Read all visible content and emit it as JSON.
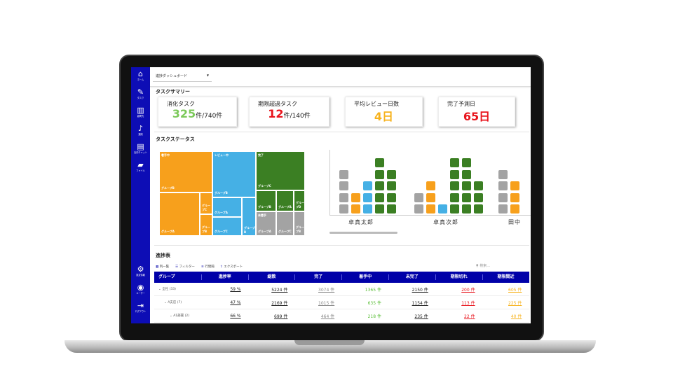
{
  "sidebar": {
    "items": [
      {
        "icon": "home-icon",
        "glyph": "⌂",
        "label": "ホーム"
      },
      {
        "icon": "task-icon",
        "glyph": "✎",
        "label": "タスク"
      },
      {
        "icon": "client-icon",
        "glyph": "▥",
        "label": "顧問先"
      },
      {
        "icon": "bell-icon",
        "glyph": "♪",
        "label": "通知"
      },
      {
        "icon": "chat-icon",
        "glyph": "▤",
        "label": "社内チャット"
      },
      {
        "icon": "folder-icon",
        "glyph": "▰",
        "label": "ファイル"
      }
    ],
    "bottom": [
      {
        "icon": "gear-icon",
        "glyph": "⚙",
        "label": "設定情報"
      },
      {
        "icon": "user-icon",
        "glyph": "◉",
        "label": "ユーザー"
      },
      {
        "icon": "logout-icon",
        "glyph": "⇥",
        "label": "ログアウト"
      }
    ],
    "color": "#0d0db5"
  },
  "header": {
    "select_value": "進捗ダッシュボード"
  },
  "summary": {
    "title": "タスクサマリー",
    "cards": [
      {
        "label": "消化タスク",
        "value": "325",
        "unit": "件/740件",
        "color": "#7cc95a"
      },
      {
        "label": "期限超過タスク",
        "value": "12",
        "unit": "件/140件",
        "color": "#e8141c"
      },
      {
        "label": "平均レビュー日数",
        "value": "4日",
        "unit": "",
        "color": "#f7b21c"
      },
      {
        "label": "完了予測日",
        "value": "65日",
        "unit": "",
        "color": "#e8141c"
      }
    ]
  },
  "status": {
    "title": "タスクステータス",
    "treemap": [
      {
        "status": "着手中",
        "color": "#f7a01c",
        "groups": [
          "グループB",
          "グループA",
          "グループC",
          "グループB"
        ]
      },
      {
        "status": "レビュー中",
        "color": "#45b0e5",
        "groups": [
          "グループB",
          "グループA",
          "グループC",
          "グループB"
        ]
      },
      {
        "status": "完了",
        "color": "#3b7f23",
        "groups": [
          "グループC",
          "グループB",
          "グループA",
          "グループD"
        ]
      },
      {
        "status": "未着手",
        "color": "#a3a3a3",
        "groups": [
          "グループA",
          "グループC",
          "グループB"
        ]
      }
    ],
    "waffle": [
      {
        "name": "卓真太郎",
        "columns": [
          {
            "status": "未着手",
            "count": 4
          },
          {
            "status": "着手中",
            "count": 2
          },
          {
            "status": "レビュー中",
            "count": 3
          },
          {
            "status": "完了",
            "count": 5
          },
          {
            "status": "完了",
            "count": 4
          }
        ]
      },
      {
        "name": "卓真次郎",
        "columns": [
          {
            "status": "未着手",
            "count": 2
          },
          {
            "status": "着手中",
            "count": 3
          },
          {
            "status": "レビュー中",
            "count": 1
          },
          {
            "status": "完了",
            "count": 5
          },
          {
            "status": "完了",
            "count": 5
          },
          {
            "status": "完了",
            "count": 3
          }
        ]
      },
      {
        "name": "田中",
        "columns": [
          {
            "status": "未着手",
            "count": 4
          },
          {
            "status": "着手中",
            "count": 3
          }
        ]
      }
    ]
  },
  "progress": {
    "title": "進捗表",
    "toolbar": [
      "列一覧",
      "フィルター",
      "行間隔",
      "エクスポート"
    ],
    "search_placeholder": "検索…",
    "columns": [
      "グループ",
      "進捗率",
      "総数",
      "完了",
      "着手中",
      "未完了",
      "期限切れ",
      "期限間近"
    ],
    "rows": [
      {
        "group": "⌄ 全社 (33)",
        "cells": [
          "59 %",
          "5224 件",
          "3074 件",
          "1365 件",
          "2150 件",
          "200 件",
          "605 件"
        ]
      },
      {
        "group": "⌄ A支店 (7)",
        "cells": [
          "47 %",
          "2169 件",
          "1015 件",
          "635 件",
          "1154 件",
          "113 件",
          "225 件"
        ]
      },
      {
        "group": "⌄ A1部署 (2)",
        "cells": [
          "66 %",
          "699 件",
          "464 件",
          "218 件",
          "235 件",
          "22 件",
          "40 件"
        ]
      }
    ],
    "cell_colors": [
      "#222",
      "#222",
      "#888",
      "#5cbf3a",
      "#222",
      "#e8141c",
      "#f7b21c"
    ],
    "header_color": "#0000a8"
  }
}
